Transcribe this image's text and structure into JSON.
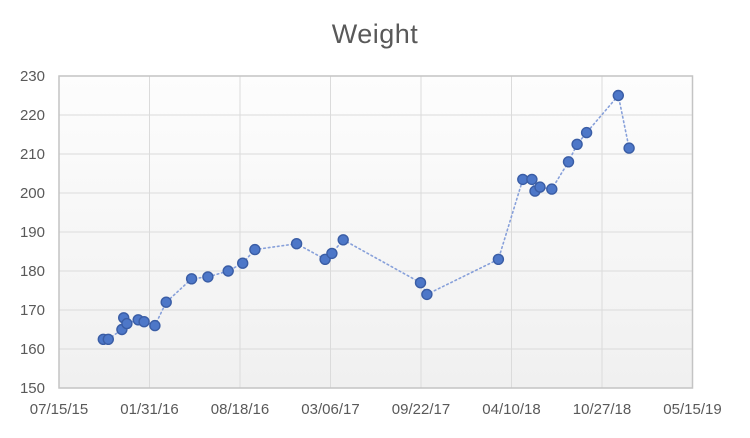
{
  "chart_data": {
    "type": "scatter",
    "title": "Weight",
    "legend": false,
    "grid": true,
    "x_axis": {
      "kind": "date",
      "tick_labels": [
        "07/15/15",
        "01/31/16",
        "08/18/16",
        "03/06/17",
        "09/22/17",
        "04/10/18",
        "10/27/18",
        "05/15/19"
      ],
      "tick_interval_days": 200,
      "range_days": [
        0,
        1400
      ]
    },
    "y_axis": {
      "tick_labels": [
        "150",
        "160",
        "170",
        "180",
        "190",
        "200",
        "210",
        "220",
        "230"
      ],
      "ticks": [
        150,
        160,
        170,
        180,
        190,
        200,
        210,
        220,
        230
      ],
      "range": [
        150,
        230
      ]
    },
    "series": [
      {
        "name": "Weight",
        "line_style": "dotted",
        "points": [
          {
            "date": "10/21/15",
            "day": 98,
            "value": 162.5
          },
          {
            "date": "11/01/15",
            "day": 109,
            "value": 162.5
          },
          {
            "date": "12/01/15",
            "day": 139,
            "value": 165
          },
          {
            "date": "12/05/15",
            "day": 143,
            "value": 168
          },
          {
            "date": "12/12/15",
            "day": 150,
            "value": 166.5
          },
          {
            "date": "01/06/16",
            "day": 175,
            "value": 167.5
          },
          {
            "date": "01/19/16",
            "day": 188,
            "value": 167
          },
          {
            "date": "02/12/16",
            "day": 212,
            "value": 166
          },
          {
            "date": "03/08/16",
            "day": 237,
            "value": 172
          },
          {
            "date": "05/03/16",
            "day": 293,
            "value": 178
          },
          {
            "date": "06/08/16",
            "day": 329,
            "value": 178.5
          },
          {
            "date": "07/23/16",
            "day": 374,
            "value": 180
          },
          {
            "date": "08/24/16",
            "day": 406,
            "value": 182
          },
          {
            "date": "09/20/16",
            "day": 433,
            "value": 185.5
          },
          {
            "date": "12/21/16",
            "day": 525,
            "value": 187
          },
          {
            "date": "02/22/17",
            "day": 588,
            "value": 183
          },
          {
            "date": "03/09/17",
            "day": 603,
            "value": 184.5
          },
          {
            "date": "04/03/17",
            "day": 628,
            "value": 188
          },
          {
            "date": "09/21/17",
            "day": 799,
            "value": 177
          },
          {
            "date": "10/05/17",
            "day": 813,
            "value": 174
          },
          {
            "date": "03/12/18",
            "day": 971,
            "value": 183
          },
          {
            "date": "05/05/18",
            "day": 1025,
            "value": 203.5
          },
          {
            "date": "05/25/18",
            "day": 1045,
            "value": 203.5
          },
          {
            "date": "06/01/18",
            "day": 1052,
            "value": 200.5
          },
          {
            "date": "06/12/18",
            "day": 1063,
            "value": 201.5
          },
          {
            "date": "07/08/18",
            "day": 1089,
            "value": 201
          },
          {
            "date": "08/14/18",
            "day": 1126,
            "value": 208
          },
          {
            "date": "09/02/18",
            "day": 1145,
            "value": 212.5
          },
          {
            "date": "09/23/18",
            "day": 1166,
            "value": 215.5
          },
          {
            "date": "12/02/18",
            "day": 1236,
            "value": 225
          },
          {
            "date": "12/26/18",
            "day": 1260,
            "value": 211.5
          }
        ]
      }
    ],
    "colors": {
      "marker_fill": "#4d77c8",
      "marker_border": "#3a5da5",
      "dotted_line": "#87a0da",
      "gridline": "#dbdbdb",
      "plot_border": "#c4c4c4",
      "plot_bg_top": "#fdfdfd",
      "plot_bg_bottom": "#f0f0f0",
      "text": "#595959"
    }
  }
}
